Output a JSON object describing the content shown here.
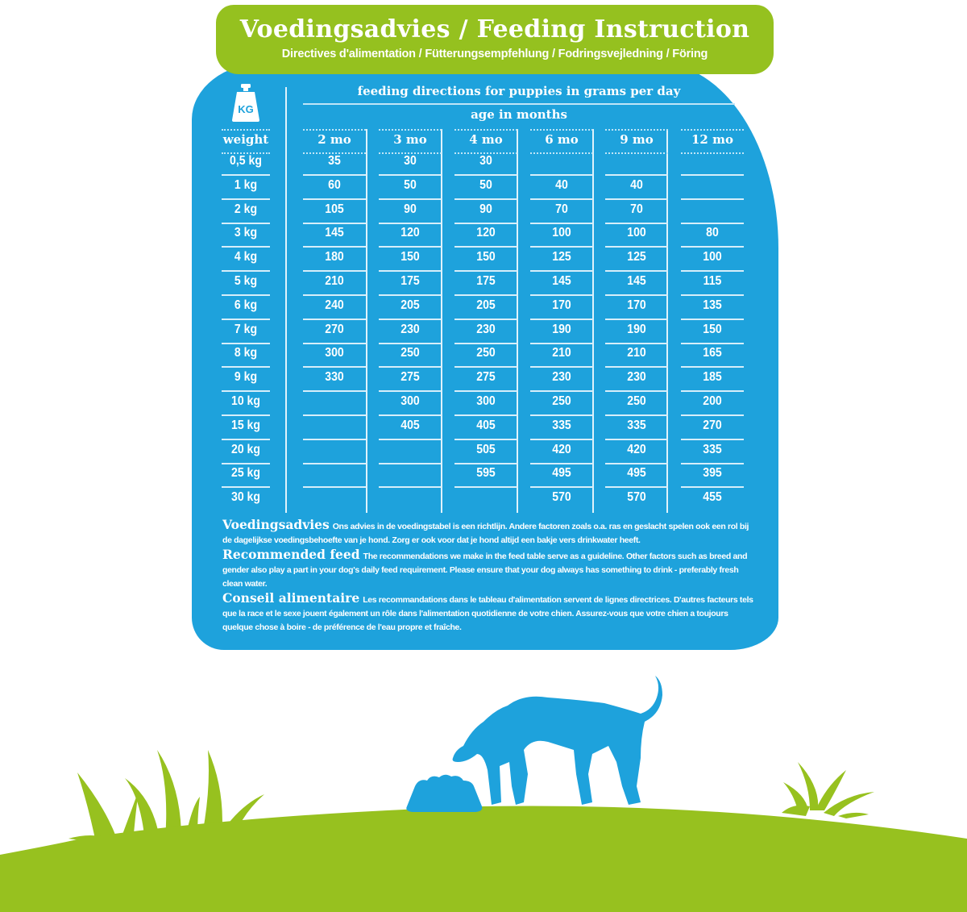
{
  "banner": {
    "title": "Voedingsadvies / Feeding Instruction",
    "subtitle": "Directives d'alimentation / Fütterungsempfehlung / Fodringsvejledning / Föring"
  },
  "table": {
    "icon_label": "KG",
    "heading": "feeding directions for puppies in grams per day",
    "subheading": "age in months",
    "weight_header": "weight",
    "columns": [
      "2 mo",
      "3 mo",
      "4 mo",
      "6 mo",
      "9 mo",
      "12 mo"
    ],
    "weights": [
      "0,5 kg",
      "1 kg",
      "2 kg",
      "3 kg",
      "4 kg",
      "5 kg",
      "6 kg",
      "7 kg",
      "8 kg",
      "9 kg",
      "10 kg",
      "15 kg",
      "20 kg",
      "25 kg",
      "30 kg"
    ],
    "values": {
      "2 mo": [
        "35",
        "60",
        "105",
        "145",
        "180",
        "210",
        "240",
        "270",
        "300",
        "330",
        "",
        "",
        "",
        "",
        ""
      ],
      "3 mo": [
        "30",
        "50",
        "90",
        "120",
        "150",
        "175",
        "205",
        "230",
        "250",
        "275",
        "300",
        "405",
        "",
        "",
        ""
      ],
      "4 mo": [
        "30",
        "50",
        "90",
        "120",
        "150",
        "175",
        "205",
        "230",
        "250",
        "275",
        "300",
        "405",
        "505",
        "595",
        ""
      ],
      "6 mo": [
        "",
        "40",
        "70",
        "100",
        "125",
        "145",
        "170",
        "190",
        "210",
        "230",
        "250",
        "335",
        "420",
        "495",
        "570"
      ],
      "9 mo": [
        "",
        "40",
        "70",
        "100",
        "125",
        "145",
        "170",
        "190",
        "210",
        "230",
        "250",
        "335",
        "420",
        "495",
        "570"
      ],
      "12 mo": [
        "",
        "",
        "",
        "80",
        "100",
        "115",
        "135",
        "150",
        "165",
        "185",
        "200",
        "270",
        "335",
        "395",
        "455"
      ]
    }
  },
  "chart_data": {
    "type": "table",
    "title": "feeding directions for puppies in grams per day",
    "xlabel": "age in months",
    "ylabel": "weight",
    "columns": [
      "weight",
      "2 mo",
      "3 mo",
      "4 mo",
      "6 mo",
      "9 mo",
      "12 mo"
    ],
    "rows": [
      [
        "0,5 kg",
        35,
        30,
        30,
        null,
        null,
        null
      ],
      [
        "1 kg",
        60,
        50,
        50,
        40,
        40,
        null
      ],
      [
        "2 kg",
        105,
        90,
        90,
        70,
        70,
        null
      ],
      [
        "3 kg",
        145,
        120,
        120,
        100,
        100,
        80
      ],
      [
        "4 kg",
        180,
        150,
        150,
        125,
        125,
        100
      ],
      [
        "5 kg",
        210,
        175,
        175,
        145,
        145,
        115
      ],
      [
        "6 kg",
        240,
        205,
        205,
        170,
        170,
        135
      ],
      [
        "7 kg",
        270,
        230,
        230,
        190,
        190,
        150
      ],
      [
        "8 kg",
        300,
        250,
        250,
        210,
        210,
        165
      ],
      [
        "9 kg",
        330,
        275,
        275,
        230,
        230,
        185
      ],
      [
        "10 kg",
        null,
        300,
        300,
        250,
        250,
        200
      ],
      [
        "15 kg",
        null,
        405,
        405,
        335,
        335,
        270
      ],
      [
        "20 kg",
        null,
        null,
        505,
        420,
        420,
        335
      ],
      [
        "25 kg",
        null,
        null,
        595,
        495,
        495,
        395
      ],
      [
        "30 kg",
        null,
        null,
        null,
        570,
        570,
        455
      ]
    ]
  },
  "notes": [
    {
      "lead": "Voedingsadvies",
      "text": "Ons advies in de voedingstabel is een richtlijn. Andere factoren zoals o.a. ras en geslacht spelen ook een rol bij de dagelijkse voedingsbehoefte van je hond. Zorg er ook voor dat je hond altijd een bakje vers drinkwater heeft."
    },
    {
      "lead": "Recommended feed",
      "text": "The recommendations we make in the feed table serve as a guideline. Other factors such as breed and gender also play a part in your dog's daily feed requirement. Please ensure that your dog always has something to drink - preferably fresh clean water."
    },
    {
      "lead": "Conseil alimentaire",
      "text": "Les recommandations dans le tableau d'alimentation servent de lignes directrices. D'autres facteurs tels que la race et le sexe jouent également un rôle dans l'alimentation quotidienne de votre chien. Assurez-vous que votre chien a toujours quelque chose à boire - de préférence de l'eau propre et fraîche."
    }
  ],
  "colors": {
    "panel_blue": "#1ea2dc",
    "banner_green": "#95c11f",
    "grass_green": "#97c11f",
    "text_white": "#ffffff"
  },
  "icons": [
    "weight-kg-icon",
    "dog-silhouette-icon",
    "food-bowl-icon",
    "grass-tuft-icon"
  ]
}
